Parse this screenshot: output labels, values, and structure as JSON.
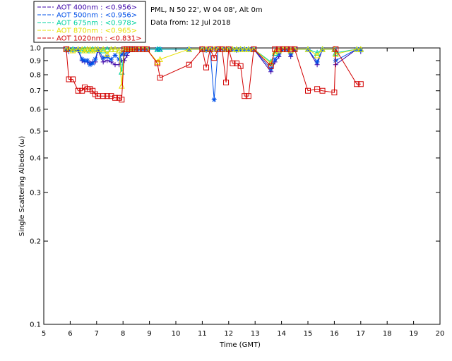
{
  "chart_data": {
    "type": "line",
    "title": "",
    "info": [
      "PML, N 50 22', W 04 08', Alt 0m",
      "Data from: 12 Jul 2018"
    ],
    "xlabel": "Time (GMT)",
    "ylabel": "Single Scattering Albedo (ω)",
    "xlim": [
      5,
      20
    ],
    "ylim": [
      0.1,
      1.0
    ],
    "yscale": "log",
    "x_ticks": [
      5,
      6,
      7,
      8,
      9,
      10,
      11,
      12,
      13,
      14,
      15,
      16,
      17,
      18,
      19,
      20
    ],
    "y_ticks": [
      0.1,
      0.2,
      0.3,
      0.4,
      0.5,
      0.6,
      0.7,
      0.8,
      0.9,
      1.0
    ],
    "y_tick_labels": [
      "0.1",
      "0.2",
      "0.3",
      "0.4",
      "0.5",
      "0.6",
      "0.7",
      "0.8",
      "0.9",
      "1.0"
    ],
    "legend_position": "top-left-outside",
    "series": [
      {
        "name": "AOT  400nm : <0.956>",
        "color": "#3a00a8",
        "marker": "plus",
        "x": [
          5.85,
          5.95,
          6.1,
          6.3,
          6.45,
          6.55,
          6.65,
          6.75,
          6.85,
          6.95,
          7.05,
          7.25,
          7.4,
          7.55,
          7.7,
          7.85,
          7.95,
          8.05,
          8.15,
          8.25,
          8.35,
          8.45,
          8.6,
          8.75,
          8.9,
          9.3,
          9.4,
          10.5,
          11.0,
          11.15,
          11.3,
          11.45,
          11.6,
          11.75,
          11.9,
          12.0,
          12.15,
          12.3,
          12.45,
          12.6,
          12.75,
          12.95,
          13.6,
          13.75,
          13.9,
          14.05,
          14.2,
          14.35,
          14.5,
          15.0,
          15.35,
          15.55,
          16.0,
          16.05,
          16.85,
          17.0
        ],
        "y": [
          0.98,
          0.97,
          0.98,
          0.98,
          0.9,
          0.89,
          0.89,
          0.88,
          0.89,
          0.89,
          0.98,
          0.89,
          0.9,
          0.89,
          0.87,
          0.87,
          0.9,
          0.9,
          0.94,
          0.98,
          0.99,
          0.99,
          0.99,
          0.99,
          0.99,
          0.99,
          0.99,
          0.99,
          0.99,
          0.98,
          0.99,
          0.99,
          0.99,
          0.99,
          0.99,
          0.99,
          0.99,
          0.98,
          0.99,
          0.99,
          0.99,
          0.99,
          0.82,
          0.89,
          0.93,
          0.99,
          0.99,
          0.93,
          0.99,
          0.99,
          0.87,
          0.99,
          0.99,
          0.87,
          0.99,
          0.97
        ]
      },
      {
        "name": "AOT  500nm : <0.956>",
        "color": "#0050e8",
        "marker": "star",
        "x": [
          5.85,
          5.95,
          6.1,
          6.3,
          6.45,
          6.55,
          6.65,
          6.75,
          6.85,
          6.95,
          7.05,
          7.25,
          7.4,
          7.55,
          7.7,
          7.85,
          7.95,
          8.05,
          8.15,
          8.25,
          8.35,
          8.45,
          8.6,
          8.75,
          8.9,
          9.3,
          9.4,
          10.5,
          11.0,
          11.15,
          11.3,
          11.45,
          11.6,
          11.75,
          11.9,
          12.0,
          12.15,
          12.3,
          12.45,
          12.6,
          12.75,
          12.95,
          13.6,
          13.75,
          13.9,
          14.05,
          14.2,
          14.35,
          14.5,
          15.0,
          15.35,
          15.55,
          16.0,
          16.05,
          16.85,
          17.0
        ],
        "y": [
          0.99,
          0.98,
          0.99,
          0.99,
          0.91,
          0.9,
          0.9,
          0.87,
          0.88,
          0.91,
          0.99,
          0.92,
          0.93,
          0.91,
          0.94,
          0.91,
          0.95,
          0.95,
          0.97,
          0.99,
          0.99,
          0.99,
          0.99,
          0.99,
          0.99,
          0.99,
          0.99,
          0.99,
          0.99,
          0.98,
          0.99,
          0.65,
          0.99,
          0.99,
          0.99,
          0.99,
          0.99,
          0.98,
          0.99,
          0.99,
          0.99,
          0.99,
          0.84,
          0.91,
          0.95,
          0.99,
          0.99,
          0.95,
          0.99,
          0.99,
          0.89,
          0.99,
          0.99,
          0.9,
          0.99,
          0.98
        ]
      },
      {
        "name": "AOT  675nm : <0.978>",
        "color": "#00d2a0",
        "marker": "triangle",
        "x": [
          5.85,
          5.95,
          6.1,
          6.3,
          6.45,
          6.55,
          6.65,
          6.75,
          6.85,
          6.95,
          7.05,
          7.25,
          7.4,
          7.55,
          7.7,
          7.85,
          7.95,
          8.05,
          8.15,
          8.25,
          8.35,
          8.45,
          8.6,
          8.75,
          8.9,
          9.3,
          9.4,
          10.5,
          11.0,
          11.15,
          11.3,
          11.45,
          11.6,
          11.75,
          11.9,
          12.0,
          12.15,
          12.3,
          12.45,
          12.6,
          12.75,
          12.95,
          13.6,
          13.75,
          13.9,
          14.05,
          14.2,
          14.35,
          14.5,
          15.0,
          15.35,
          15.55,
          16.0,
          16.05,
          16.85,
          17.0
        ],
        "y": [
          0.99,
          0.99,
          0.99,
          0.99,
          0.98,
          0.99,
          0.99,
          0.98,
          0.99,
          0.99,
          0.99,
          0.98,
          0.99,
          0.99,
          0.99,
          0.98,
          0.82,
          0.99,
          0.99,
          0.99,
          0.99,
          0.99,
          0.99,
          0.99,
          0.99,
          0.99,
          0.99,
          0.99,
          0.99,
          0.99,
          0.99,
          0.99,
          0.99,
          0.99,
          0.99,
          0.99,
          0.99,
          0.99,
          0.99,
          0.99,
          0.99,
          0.99,
          0.89,
          0.96,
          0.98,
          0.99,
          0.99,
          0.98,
          0.99,
          0.99,
          0.96,
          0.99,
          0.99,
          0.96,
          0.99,
          0.99
        ]
      },
      {
        "name": "AOT  870nm : <0.965>",
        "color": "#e8e000",
        "marker": "triangle",
        "x": [
          5.85,
          5.95,
          6.1,
          6.3,
          6.45,
          6.55,
          6.65,
          6.75,
          6.85,
          6.95,
          7.05,
          7.25,
          7.4,
          7.55,
          7.7,
          7.85,
          7.95,
          8.05,
          8.15,
          8.25,
          8.35,
          8.45,
          8.6,
          8.75,
          8.9,
          9.3,
          9.4,
          10.5,
          11.0,
          11.15,
          11.3,
          11.45,
          11.6,
          11.75,
          11.9,
          12.0,
          12.15,
          12.3,
          12.45,
          12.6,
          12.75,
          12.95,
          13.6,
          13.75,
          13.9,
          14.05,
          14.2,
          14.35,
          14.5,
          15.0,
          15.35,
          15.55,
          16.0,
          16.05,
          16.85,
          17.0
        ],
        "y": [
          0.99,
          0.99,
          0.98,
          0.99,
          0.99,
          0.98,
          0.99,
          0.99,
          0.98,
          0.99,
          0.99,
          0.99,
          0.95,
          0.99,
          0.99,
          0.98,
          0.73,
          0.99,
          0.99,
          0.99,
          0.99,
          0.99,
          0.99,
          0.99,
          0.99,
          0.89,
          0.91,
          0.99,
          0.99,
          0.99,
          0.99,
          0.99,
          0.99,
          0.99,
          0.99,
          0.99,
          0.99,
          0.99,
          0.99,
          0.99,
          0.99,
          0.99,
          0.88,
          0.97,
          0.98,
          0.99,
          0.99,
          0.98,
          0.99,
          0.99,
          0.94,
          0.99,
          0.99,
          0.95,
          0.99,
          0.99
        ]
      },
      {
        "name": "AOT 1020nm : <0.831>",
        "color": "#d20000",
        "marker": "square",
        "x": [
          5.85,
          5.95,
          6.1,
          6.3,
          6.45,
          6.55,
          6.65,
          6.75,
          6.85,
          6.95,
          7.05,
          7.25,
          7.4,
          7.55,
          7.7,
          7.85,
          7.95,
          8.05,
          8.15,
          8.25,
          8.35,
          8.45,
          8.6,
          8.75,
          8.9,
          9.3,
          9.4,
          10.5,
          11.0,
          11.15,
          11.3,
          11.45,
          11.6,
          11.75,
          11.9,
          12.0,
          12.15,
          12.3,
          12.45,
          12.6,
          12.75,
          12.95,
          13.6,
          13.75,
          13.9,
          14.05,
          14.2,
          14.35,
          14.5,
          15.0,
          15.35,
          15.55,
          16.0,
          16.05,
          16.85,
          17.0
        ],
        "y": [
          0.99,
          0.77,
          0.77,
          0.7,
          0.7,
          0.72,
          0.71,
          0.71,
          0.7,
          0.68,
          0.67,
          0.67,
          0.67,
          0.67,
          0.66,
          0.66,
          0.65,
          0.99,
          0.99,
          0.99,
          0.99,
          0.99,
          0.99,
          0.99,
          0.99,
          0.88,
          0.78,
          0.87,
          0.99,
          0.85,
          0.99,
          0.92,
          0.99,
          0.99,
          0.75,
          0.99,
          0.88,
          0.88,
          0.86,
          0.67,
          0.67,
          0.99,
          0.86,
          0.99,
          0.99,
          0.99,
          0.99,
          0.99,
          0.99,
          0.7,
          0.71,
          0.7,
          0.69,
          0.99,
          0.74,
          0.74
        ]
      }
    ]
  }
}
